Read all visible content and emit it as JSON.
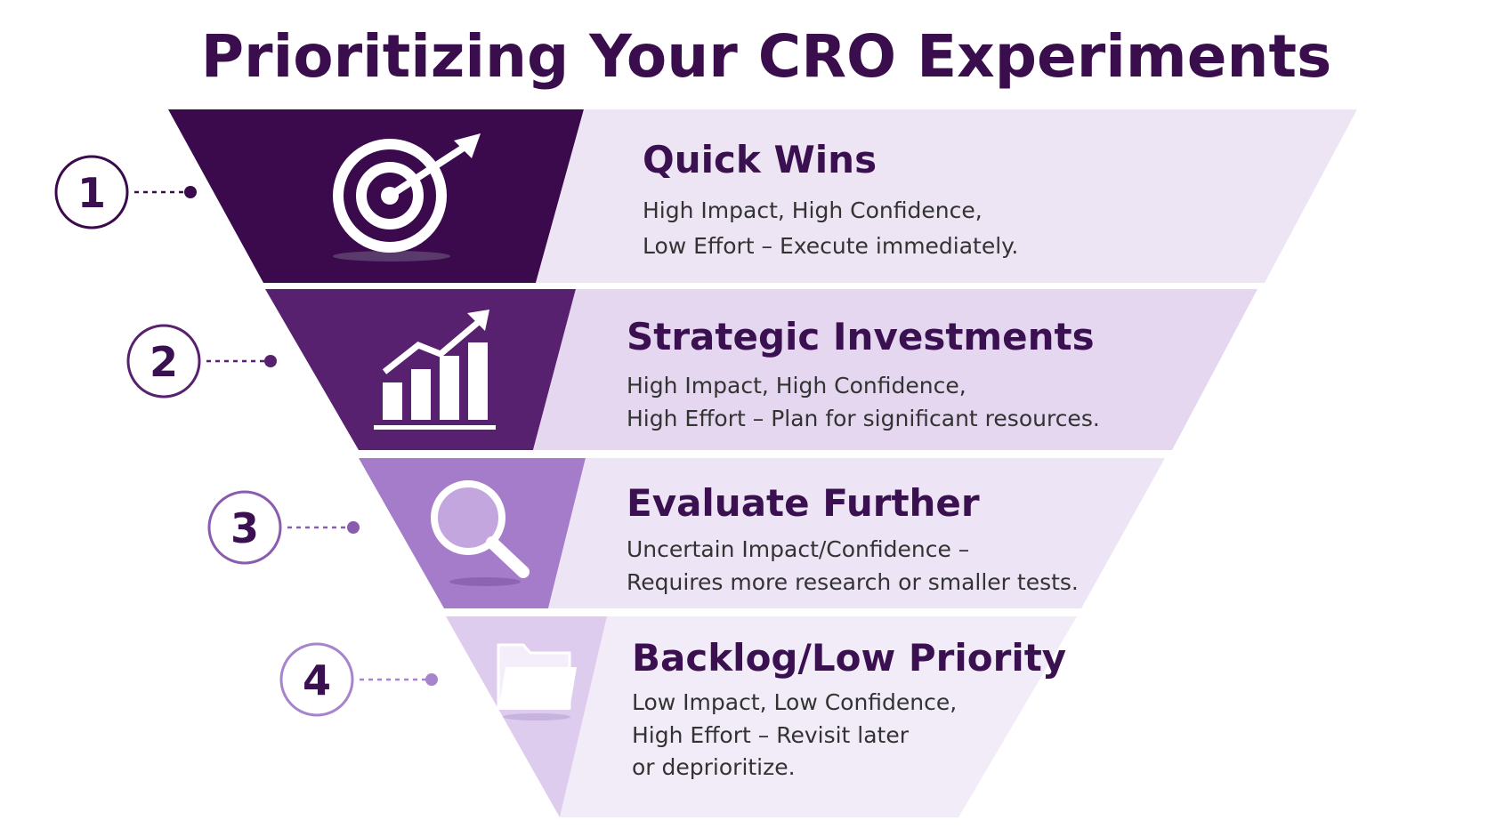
{
  "title": "Prioritizing Your CRO Experiments",
  "tiers": [
    {
      "number": "1",
      "heading": "Quick Wins",
      "description": [
        "High Impact, High Confidence,",
        "Low Effort – Execute immediately."
      ]
    },
    {
      "number": "2",
      "heading": "Strategic Investments",
      "description": [
        "High Impact, High Confidence,",
        "High Effort – Plan for significant resources."
      ]
    },
    {
      "number": "3",
      "heading": "Evaluate Further",
      "description": [
        "Uncertain Impact/Confidence –",
        "Requires more research or smaller tests."
      ]
    },
    {
      "number": "4",
      "heading": "Backlog/Low Priority",
      "description": [
        "Low Impact, Low Confidence,",
        "High Effort – Revisit later",
        "or deprioritize."
      ]
    }
  ]
}
